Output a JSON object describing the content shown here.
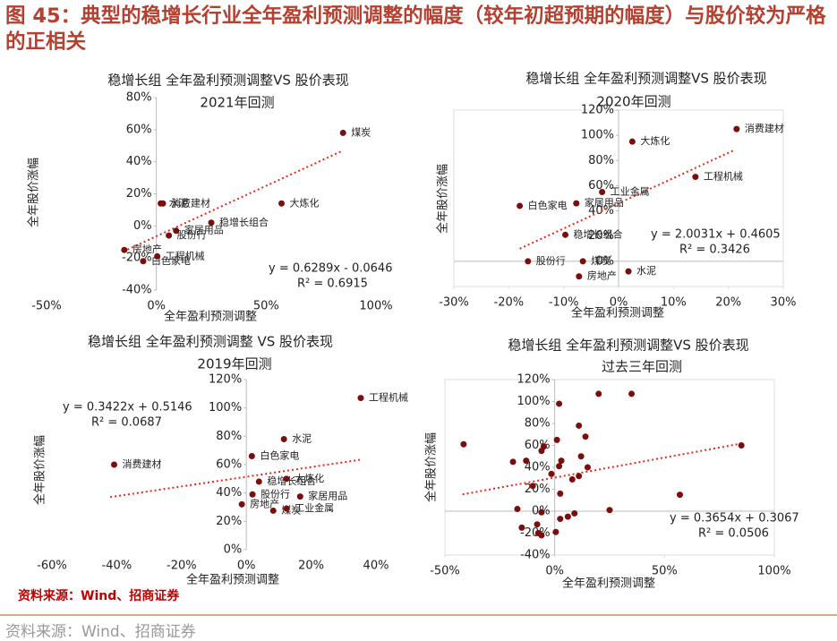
{
  "title": "图 45：典型的稳增长行业全年盈利预测调整的幅度（较年初超预期的幅度）与股价较为严格的正相关",
  "source": "资料来源：Wind、招商证券",
  "footer_source": "资料来源：Wind、招商证券",
  "chart_data": [
    {
      "type": "scatter",
      "title": "稳增长组 全年盈利预测调整VS 股价表现",
      "subtitle": "2021年回测",
      "x_label": "全年盈利预测调整",
      "y_label": "全年股价涨幅",
      "color": "#7b0d0d",
      "trend_color": "#e8291c",
      "labels": [
        "煤炭",
        "大炼化",
        "消费建材",
        "水泥",
        "家居用品",
        "稳增长组合",
        "股份行",
        "房地产",
        "白色家电",
        "工程机械"
      ],
      "x": [
        85,
        57,
        3,
        2,
        9,
        25,
        5.7,
        -14.6,
        -6,
        0.4
      ],
      "values": [
        58,
        14,
        14,
        14,
        -3,
        2,
        -6,
        -15,
        -22,
        -19
      ],
      "trend": {
        "x": [
          -15,
          85
        ],
        "y": [
          -15.9,
          47
        ]
      },
      "equation": "y = 0.6289x - 0.0646",
      "r2": "R² = 0.6915",
      "xlim": [
        -50,
        100
      ],
      "ylim": [
        -40,
        80
      ],
      "xticks": [
        {
          "value": -50,
          "label": "-50%"
        },
        {
          "value": 0,
          "label": "0%"
        },
        {
          "value": 50,
          "label": "50%"
        },
        {
          "value": 100,
          "label": "100%"
        }
      ],
      "yticks": [
        {
          "value": -40,
          "label": "-40%"
        },
        {
          "value": -20,
          "label": "-20%"
        },
        {
          "value": 0,
          "label": "0%"
        },
        {
          "value": 20,
          "label": "20%"
        },
        {
          "value": 40,
          "label": "40%"
        },
        {
          "value": 60,
          "label": "60%"
        },
        {
          "value": 80,
          "label": "80%"
        }
      ],
      "frame": false
    },
    {
      "type": "scatter",
      "title": "稳增长组 全年盈利预测调整VS 股价表现",
      "subtitle": "2020年回测",
      "x_label": "全年盈利预测调整",
      "y_label": "全年股价涨幅",
      "color": "#7b0d0d",
      "trend_color": "#e8291c",
      "labels": [
        "消费建材",
        "大炼化",
        "工程机械",
        "工业金属",
        "家居用品",
        "白色家电",
        "稳增长组合",
        "股份行",
        "煤炭",
        "房地产",
        "水泥"
      ],
      "x": [
        21.5,
        2.5,
        14,
        -3,
        -7.7,
        -18,
        -9.7,
        -16.5,
        -6.5,
        -7.2,
        1.8
      ],
      "values": [
        105,
        95,
        67,
        55,
        46,
        44,
        21,
        0,
        0,
        -12,
        -8
      ],
      "trend": {
        "x": [
          -18,
          21
        ],
        "y": [
          10,
          88.1
        ]
      },
      "equation": "y = 2.0031x + 0.4605",
      "r2": "R² = 0.3426",
      "xlim": [
        -30,
        30
      ],
      "ylim": [
        -20,
        120
      ],
      "xticks": [
        {
          "value": -30,
          "label": "-30%"
        },
        {
          "value": -20,
          "label": "-20%"
        },
        {
          "value": -10,
          "label": "-10%"
        },
        {
          "value": 0,
          "label": "0%"
        },
        {
          "value": 10,
          "label": "10%"
        },
        {
          "value": 20,
          "label": "20%"
        },
        {
          "value": 30,
          "label": "30%"
        }
      ],
      "yticks": [
        {
          "value": 0,
          "label": "0%"
        },
        {
          "value": 20,
          "label": "20%"
        },
        {
          "value": 40,
          "label": "40%"
        },
        {
          "value": 60,
          "label": "60%"
        },
        {
          "value": 80,
          "label": "80%"
        },
        {
          "value": 100,
          "label": "100%"
        },
        {
          "value": 120,
          "label": "120%"
        }
      ],
      "frame": true
    },
    {
      "type": "scatter",
      "title": "稳增长组 全年盈利预测调整 VS 股价表现",
      "subtitle": "2019年回测",
      "x_label": "全年盈利预测调整",
      "y_label": "全年股价涨幅",
      "color": "#7b0d0d",
      "trend_color": "#e8291c",
      "labels": [
        "工程机械",
        "消费建材",
        "水泥",
        "白色家电",
        "稳增长组合",
        "大炼化",
        "股份行",
        "家居用品",
        "房地产",
        "煤炭",
        "工业金属"
      ],
      "x": [
        35.3,
        -40.8,
        11.6,
        1.7,
        3.9,
        12.4,
        1.9,
        16.6,
        -1.4,
        8.3,
        12.4
      ],
      "values": [
        107,
        60,
        78,
        66,
        48,
        50,
        39,
        37.5,
        32,
        27.5,
        29
      ],
      "trend": {
        "x": [
          -42,
          35
        ],
        "y": [
          37.1,
          63.4
        ]
      },
      "equation": "y = 0.3422x + 0.5146",
      "r2": "R² = 0.0687",
      "xlim": [
        -60,
        40
      ],
      "ylim": [
        0,
        120
      ],
      "xticks": [
        {
          "value": -60,
          "label": "-60%"
        },
        {
          "value": -40,
          "label": "-40%"
        },
        {
          "value": -20,
          "label": "-20%"
        },
        {
          "value": 0,
          "label": "0%"
        },
        {
          "value": 20,
          "label": "20%"
        },
        {
          "value": 40,
          "label": "40%"
        }
      ],
      "yticks": [
        {
          "value": 0,
          "label": "0%"
        },
        {
          "value": 20,
          "label": "20%"
        },
        {
          "value": 40,
          "label": "40%"
        },
        {
          "value": 60,
          "label": "60%"
        },
        {
          "value": 80,
          "label": "80%"
        },
        {
          "value": 100,
          "label": "100%"
        },
        {
          "value": 120,
          "label": "120%"
        }
      ],
      "frame": false
    },
    {
      "type": "scatter",
      "title": "稳增长组 全年盈利预测调整VS 股价表现",
      "subtitle": "过去三年回测",
      "x_label": "全年盈利预测调整",
      "y_label": "全年股价涨幅",
      "color": "#7b0d0d",
      "trend_color": "#e8291c",
      "x": [
        -41.5,
        85,
        20,
        35,
        2,
        11,
        14,
        -19,
        -13,
        -6,
        -5,
        1,
        2,
        3,
        12,
        15,
        8,
        11,
        -1.5,
        -10,
        2.5,
        57,
        -17,
        -6,
        25,
        9,
        6,
        2.5,
        -15,
        -8,
        -7.5,
        0.5,
        -6
      ],
      "values": [
        61,
        60,
        107,
        107,
        98,
        78,
        68,
        45,
        46,
        55,
        59,
        65,
        41,
        46,
        50,
        40,
        29,
        32,
        34,
        23,
        16,
        15,
        2,
        -1,
        1,
        -2,
        -5,
        -7,
        -15,
        -12,
        -20,
        -19,
        -22
      ],
      "trend": {
        "x": [
          -42,
          85
        ],
        "y": [
          15.3,
          61.7
        ]
      },
      "equation": "y = 0.3654x + 0.3067",
      "r2": "R² = 0.0506",
      "xlim": [
        -50,
        100
      ],
      "ylim": [
        -40,
        120
      ],
      "xticks": [
        {
          "value": -50,
          "label": "-50%"
        },
        {
          "value": 0,
          "label": "0%"
        },
        {
          "value": 50,
          "label": "50%"
        },
        {
          "value": 100,
          "label": "100%"
        }
      ],
      "yticks": [
        {
          "value": -40,
          "label": "-40%"
        },
        {
          "value": -20,
          "label": "-20%"
        },
        {
          "value": 0,
          "label": "0%"
        },
        {
          "value": 20,
          "label": "20%"
        },
        {
          "value": 40,
          "label": "40%"
        },
        {
          "value": 60,
          "label": "60%"
        },
        {
          "value": 80,
          "label": "80%"
        },
        {
          "value": 100,
          "label": "100%"
        },
        {
          "value": 120,
          "label": "120%"
        }
      ],
      "frame": true
    }
  ]
}
